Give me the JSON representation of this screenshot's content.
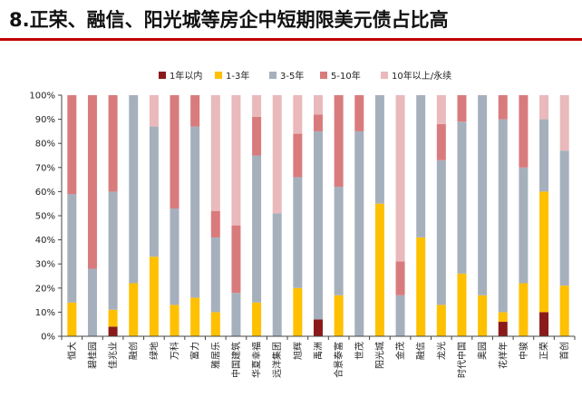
{
  "title": "8.正荣、融信、阳光城等房企中短期限美元债占比高",
  "colors": {
    "title_rule": "#c00000",
    "s1": "#8b1a1a",
    "s2": "#ffc000",
    "s3": "#a6b0bd",
    "s4": "#d97b7d",
    "s5": "#e9b9bb"
  },
  "chart_data": {
    "type": "bar",
    "stacked": true,
    "title": "8.正荣、融信、阳光城等房企中短期限美元债占比高",
    "xlabel": "",
    "ylabel": "",
    "ylim": [
      0,
      100
    ],
    "yticks": [
      "0%",
      "10%",
      "20%",
      "30%",
      "40%",
      "50%",
      "60%",
      "70%",
      "80%",
      "90%",
      "100%"
    ],
    "legend_position": "top",
    "grid": false,
    "categories": [
      "恒大",
      "碧桂园",
      "佳兆业",
      "融创",
      "绿地",
      "万科",
      "富力",
      "雅居乐",
      "中国建筑",
      "华夏幸福",
      "远洋集团",
      "旭辉",
      "禹洲",
      "合景泰富",
      "世茂",
      "阳光城",
      "金茂",
      "融信",
      "龙光",
      "时代中国",
      "奥园",
      "花样年",
      "中骏",
      "正荣",
      "首创"
    ],
    "series": [
      {
        "name": "1年以内",
        "values": [
          0,
          0,
          4,
          0,
          0,
          0,
          0,
          0,
          0,
          0,
          0,
          0,
          7,
          0,
          0,
          0,
          0,
          0,
          0,
          0,
          0,
          6,
          0,
          10,
          0
        ]
      },
      {
        "name": "1-3年",
        "values": [
          14,
          0,
          7,
          22,
          33,
          13,
          16,
          10,
          0,
          14,
          0,
          20,
          0,
          17,
          0,
          55,
          0,
          41,
          13,
          26,
          17,
          4,
          22,
          50,
          21
        ]
      },
      {
        "name": "3-5年",
        "values": [
          45,
          28,
          49,
          78,
          54,
          40,
          71,
          31,
          18,
          61,
          51,
          46,
          78,
          45,
          85,
          45,
          17,
          59,
          60,
          63,
          83,
          80,
          48,
          30,
          56
        ]
      },
      {
        "name": "5-10年",
        "values": [
          41,
          72,
          40,
          0,
          0,
          47,
          13,
          11,
          28,
          16,
          0,
          18,
          7,
          38,
          15,
          0,
          14,
          0,
          15,
          11,
          0,
          10,
          30,
          0,
          0
        ]
      },
      {
        "name": "10年以上/永续",
        "values": [
          0,
          0,
          0,
          0,
          13,
          0,
          0,
          48,
          54,
          9,
          49,
          16,
          8,
          0,
          0,
          0,
          69,
          0,
          12,
          0,
          0,
          0,
          0,
          10,
          23
        ]
      }
    ]
  }
}
